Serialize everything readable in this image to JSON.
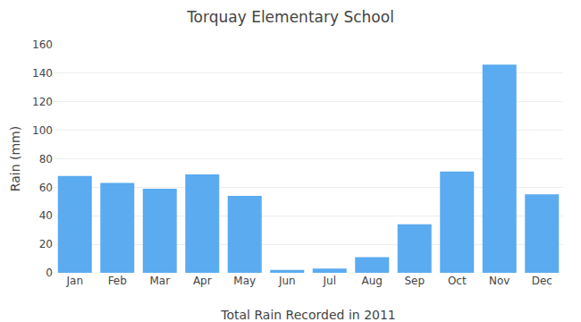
{
  "chart_data": {
    "type": "bar",
    "title": "Torquay Elementary School",
    "xlabel": "Total Rain Recorded in 2011",
    "ylabel": "Rain (mm)",
    "categories": [
      "Jan",
      "Feb",
      "Mar",
      "Apr",
      "May",
      "Jun",
      "Jul",
      "Aug",
      "Sep",
      "Oct",
      "Nov",
      "Dec"
    ],
    "values": [
      68,
      63,
      59,
      69,
      54,
      2,
      3,
      11,
      34,
      71,
      146,
      55
    ],
    "color": "#5aabf0",
    "ylim": [
      0,
      160
    ],
    "yticks": [
      0,
      20,
      40,
      60,
      80,
      100,
      120,
      140,
      160
    ],
    "grid": true
  }
}
